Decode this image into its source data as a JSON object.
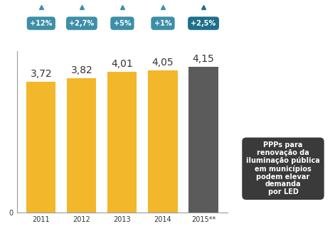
{
  "chart_data": {
    "type": "bar",
    "categories": [
      "2011",
      "2012",
      "2013",
      "2014",
      "2015**"
    ],
    "values": [
      3.72,
      3.82,
      4.01,
      4.05,
      4.15
    ],
    "value_labels": [
      "3,72",
      "3,82",
      "4,01",
      "4,05",
      "4,15"
    ],
    "growth": [
      12,
      2.7,
      5,
      1,
      2.5
    ],
    "growth_labels": [
      "+12%",
      "+2,7%",
      "+5%",
      "+1%",
      "+2,5%"
    ],
    "colors": [
      "#f2b72b",
      "#f2b72b",
      "#f2b72b",
      "#f2b72b",
      "#5b5b5b"
    ],
    "ylim": [
      0,
      4.6
    ],
    "yticks": [
      0
    ],
    "grid": false,
    "data_labels": true,
    "annotation": "PPPs para\nrenovação da\niluminação pública\nem municípios\npodem elevar\ndemanda\npor LED"
  }
}
